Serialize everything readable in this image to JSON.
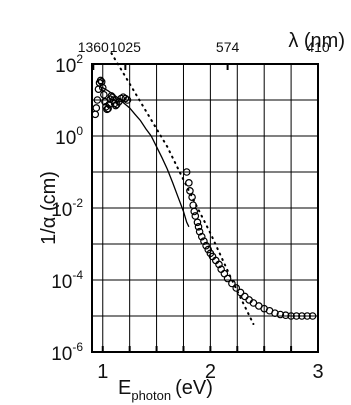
{
  "chart_data": {
    "type": "scatter",
    "title": "",
    "xlabel": "E",
    "xlabel_sub": "photon",
    "xlabel_unit": "(eV)",
    "ylabel": "1/α (cm)",
    "top_label": "λ (nm)",
    "x_scale": "linear",
    "y_scale": "log",
    "xlim": [
      0.9,
      3.0
    ],
    "ylim": [
      1e-06,
      100
    ],
    "grid": true,
    "x_ticks": [
      {
        "value": 1,
        "label": "1"
      },
      {
        "value": 2,
        "label": "2"
      },
      {
        "value": 3,
        "label": "3"
      }
    ],
    "x_grid": [
      1.0,
      1.25,
      1.5,
      1.75,
      2.0,
      2.25,
      2.5,
      2.75
    ],
    "y_ticks": [
      {
        "value": 100,
        "label": "10",
        "exp": "2"
      },
      {
        "value": 1,
        "label": "10",
        "exp": "0"
      },
      {
        "value": 0.01,
        "label": "10",
        "exp": "-2"
      },
      {
        "value": 0.0001,
        "label": "10",
        "exp": "-4"
      },
      {
        "value": 1e-06,
        "label": "10",
        "exp": "-6"
      }
    ],
    "top_ticks": [
      {
        "energy": 0.912,
        "label": "1360"
      },
      {
        "energy": 1.21,
        "label": "1025"
      },
      {
        "energy": 2.16,
        "label": "574"
      },
      {
        "energy": 3.02,
        "label": "410"
      }
    ],
    "series": [
      {
        "style": "markers",
        "points": [
          [
            0.93,
            4.0
          ],
          [
            0.94,
            6.0
          ],
          [
            0.95,
            10.0
          ],
          [
            0.96,
            20.0
          ],
          [
            0.97,
            30.0
          ],
          [
            0.98,
            35.0
          ],
          [
            0.99,
            32.0
          ],
          [
            1.0,
            22.0
          ],
          [
            1.01,
            14.0
          ],
          [
            1.02,
            9.0
          ],
          [
            1.03,
            6.5
          ],
          [
            1.04,
            5.5
          ],
          [
            1.05,
            5.8
          ],
          [
            1.06,
            7.5
          ],
          [
            1.07,
            10.5
          ],
          [
            1.08,
            13.0
          ],
          [
            1.09,
            12.0
          ],
          [
            1.1,
            10.0
          ],
          [
            1.11,
            8.0
          ],
          [
            1.12,
            7.0
          ],
          [
            1.13,
            7.5
          ],
          [
            1.15,
            9.0
          ],
          [
            1.17,
            11.0
          ],
          [
            1.19,
            12.0
          ],
          [
            1.21,
            11.0
          ],
          [
            1.23,
            10.0
          ],
          [
            1.78,
            0.1
          ],
          [
            1.8,
            0.05
          ],
          [
            1.81,
            0.03
          ],
          [
            1.83,
            0.02
          ],
          [
            1.84,
            0.012
          ],
          [
            1.85,
            0.008
          ],
          [
            1.86,
            0.006
          ],
          [
            1.88,
            0.004
          ],
          [
            1.89,
            0.003
          ],
          [
            1.9,
            0.0022
          ],
          [
            1.92,
            0.0016
          ],
          [
            1.94,
            0.0012
          ],
          [
            1.96,
            0.0009
          ],
          [
            1.98,
            0.0007
          ],
          [
            2.0,
            0.00055
          ],
          [
            2.02,
            0.00045
          ],
          [
            2.05,
            0.00035
          ],
          [
            2.08,
            0.00027
          ],
          [
            2.1,
            0.0002
          ],
          [
            2.13,
            0.00015
          ],
          [
            2.16,
            0.00011
          ],
          [
            2.2,
            8e-05
          ],
          [
            2.24,
            6e-05
          ],
          [
            2.28,
            4.5e-05
          ],
          [
            2.32,
            3.5e-05
          ],
          [
            2.36,
            2.8e-05
          ],
          [
            2.4,
            2.3e-05
          ],
          [
            2.45,
            1.9e-05
          ],
          [
            2.5,
            1.6e-05
          ],
          [
            2.55,
            1.4e-05
          ],
          [
            2.6,
            1.2e-05
          ],
          [
            2.65,
            1.1e-05
          ],
          [
            2.7,
            1.05e-05
          ],
          [
            2.75,
            1e-05
          ],
          [
            2.8,
            1e-05
          ],
          [
            2.85,
            1e-05
          ],
          [
            2.9,
            1e-05
          ],
          [
            2.95,
            1e-05
          ]
        ]
      },
      {
        "style": "solid-line",
        "points": [
          [
            0.95,
            25
          ],
          [
            1.0,
            22
          ],
          [
            1.05,
            18
          ],
          [
            1.1,
            14
          ],
          [
            1.15,
            11
          ],
          [
            1.2,
            8
          ],
          [
            1.25,
            6
          ],
          [
            1.3,
            4
          ],
          [
            1.35,
            2.7
          ],
          [
            1.4,
            1.6
          ],
          [
            1.45,
            1.0
          ],
          [
            1.5,
            0.5
          ],
          [
            1.55,
            0.25
          ],
          [
            1.6,
            0.12
          ],
          [
            1.65,
            0.05
          ],
          [
            1.7,
            0.02
          ],
          [
            1.75,
            0.008
          ],
          [
            1.78,
            0.004
          ],
          [
            1.8,
            0.003
          ]
        ]
      },
      {
        "style": "dotted-line",
        "points": [
          [
            1.08,
            200
          ],
          [
            1.2,
            50
          ],
          [
            1.4,
            5
          ],
          [
            1.6,
            0.5
          ],
          [
            1.8,
            0.03
          ],
          [
            2.0,
            0.002
          ],
          [
            2.2,
            0.0001
          ],
          [
            2.4,
            6e-06
          ],
          [
            2.57,
            8e-07
          ]
        ]
      }
    ]
  }
}
